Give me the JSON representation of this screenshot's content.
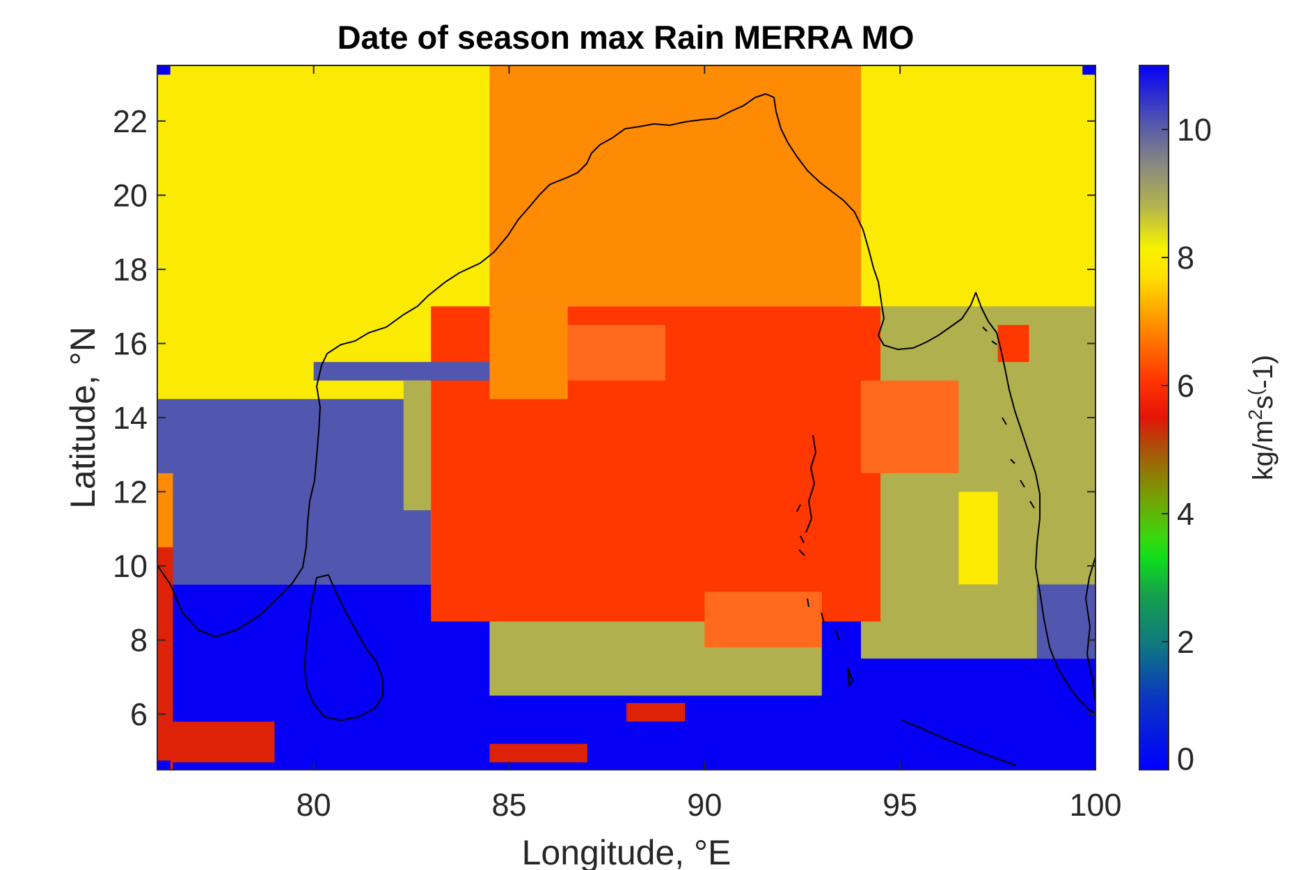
{
  "chart_data": {
    "type": "heatmap",
    "title": "Date of season max Rain MERRA MO",
    "xlabel": "Longitude, °E",
    "ylabel": "Latitude, °N",
    "xlim": [
      76,
      100
    ],
    "ylim": [
      4.5,
      23.5
    ],
    "x_ticks": [
      80,
      85,
      90,
      95,
      100
    ],
    "y_ticks": [
      6,
      8,
      10,
      12,
      14,
      16,
      18,
      20,
      22
    ],
    "colorbar": {
      "label": "kg/m²s(-1)",
      "range": [
        0,
        11
      ],
      "ticks": [
        0,
        2,
        4,
        6,
        8,
        10
      ],
      "colormap": "jet-reversed (blue at 0, green near 3, yellow near 8, blue near 11)"
    },
    "grid": false,
    "coastlines": true,
    "cell_size_deg": [
      0.667,
      0.5
    ],
    "classes": [
      {
        "value": 8.3,
        "color": "#FBEB04",
        "description": "yellow"
      },
      {
        "value": 7.2,
        "color": "#FF8A03",
        "description": "orange"
      },
      {
        "value": 6.6,
        "color": "#FF6A1C",
        "description": "dark orange"
      },
      {
        "value": 6.0,
        "color": "#FF3700",
        "description": "red-orange"
      },
      {
        "value": 5.7,
        "color": "#DD2208",
        "description": "red"
      },
      {
        "value": 9.1,
        "color": "#B0B04F",
        "description": "olive"
      },
      {
        "value": 10.1,
        "color": "#5156AE",
        "description": "slate blue"
      },
      {
        "value": 11,
        "color": "#0500F5",
        "description": "blue"
      }
    ],
    "regions": [
      {
        "name": "north-west",
        "lon": [
          76,
          84.5
        ],
        "lat": [
          14.5,
          23.5
        ],
        "value": 8.3
      },
      {
        "name": "north-central",
        "lon": [
          84.5,
          94
        ],
        "lat": [
          17,
          23.5
        ],
        "value": 7.2
      },
      {
        "name": "north-east",
        "lon": [
          94,
          100
        ],
        "lat": [
          11,
          23.5
        ],
        "value": 8.3
      },
      {
        "name": "central",
        "lon": [
          83,
          94.5
        ],
        "lat": [
          8.5,
          17
        ],
        "value": 6.0
      },
      {
        "name": "south-west",
        "lon": [
          76,
          83
        ],
        "lat": [
          9.5,
          15
        ],
        "value": 10.1
      },
      {
        "name": "south",
        "lon": [
          76,
          100
        ],
        "lat": [
          4.5,
          9.5
        ],
        "value": 11
      },
      {
        "name": "south-central-band",
        "lon": [
          84.5,
          93
        ],
        "lat": [
          6.5,
          9.5
        ],
        "value": 9.1
      },
      {
        "name": "south-east",
        "lon": [
          94,
          100
        ],
        "lat": [
          7.5,
          17
        ],
        "value": 9.1
      }
    ]
  },
  "colors": {
    "yellow": "#FBEB04",
    "orange": "#FF8A03",
    "dark_orange": "#FF6A1C",
    "red_orange": "#FF3700",
    "red": "#DD2208",
    "olive": "#B0B04F",
    "slate": "#5156AE",
    "blue": "#0500F5",
    "axis": "#262626"
  }
}
